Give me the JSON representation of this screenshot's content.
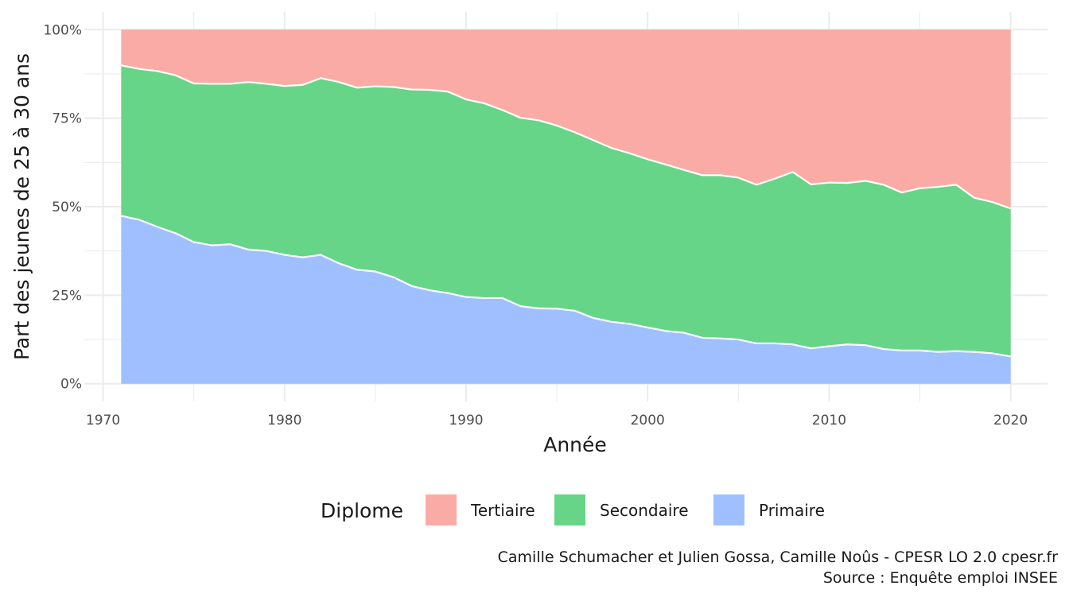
{
  "chart_data": {
    "type": "area",
    "stacked": true,
    "normalized": true,
    "xlabel": "Année",
    "ylabel": "Part des jeunes de 25 à 30 ans",
    "xlim": [
      1968.968,
      2022.032
    ],
    "ylim": [
      0,
      1
    ],
    "x_ticks": [
      1970,
      1980,
      1990,
      2000,
      2010,
      2020
    ],
    "y_ticks": [
      0,
      0.25,
      0.5,
      0.75,
      1
    ],
    "y_tick_labels": [
      "0%",
      "25%",
      "50%",
      "75%",
      "100%"
    ],
    "grid": true,
    "legend": {
      "title": "Diplome",
      "position": "bottom",
      "entries": [
        "Tertiaire",
        "Secondaire",
        "Primaire"
      ]
    },
    "x": [
      1971,
      1972,
      1973,
      1974,
      1975,
      1976,
      1977,
      1978,
      1979,
      1980,
      1981,
      1982,
      1983,
      1984,
      1985,
      1986,
      1987,
      1988,
      1989,
      1990,
      1991,
      1992,
      1993,
      1994,
      1995,
      1996,
      1997,
      1998,
      1999,
      2000,
      2001,
      2002,
      2003,
      2004,
      2005,
      2006,
      2007,
      2008,
      2009,
      2010,
      2011,
      2012,
      2013,
      2014,
      2015,
      2016,
      2017,
      2018,
      2019,
      2020
    ],
    "series": [
      {
        "name": "Primaire",
        "color": "#A0BFFE",
        "values": [
          0.474,
          0.463,
          0.443,
          0.425,
          0.4,
          0.391,
          0.394,
          0.379,
          0.375,
          0.364,
          0.357,
          0.364,
          0.34,
          0.322,
          0.317,
          0.301,
          0.276,
          0.264,
          0.256,
          0.245,
          0.242,
          0.242,
          0.219,
          0.213,
          0.212,
          0.206,
          0.186,
          0.175,
          0.169,
          0.159,
          0.149,
          0.144,
          0.13,
          0.128,
          0.125,
          0.114,
          0.114,
          0.111,
          0.1,
          0.106,
          0.111,
          0.109,
          0.098,
          0.094,
          0.094,
          0.09,
          0.092,
          0.09,
          0.086,
          0.077
        ]
      },
      {
        "name": "Secondaire",
        "color": "#66D587",
        "values": [
          0.425,
          0.426,
          0.44,
          0.446,
          0.448,
          0.456,
          0.453,
          0.473,
          0.472,
          0.477,
          0.487,
          0.499,
          0.512,
          0.514,
          0.523,
          0.537,
          0.555,
          0.566,
          0.569,
          0.558,
          0.55,
          0.531,
          0.532,
          0.531,
          0.517,
          0.504,
          0.502,
          0.491,
          0.482,
          0.475,
          0.47,
          0.46,
          0.459,
          0.461,
          0.457,
          0.448,
          0.465,
          0.487,
          0.463,
          0.462,
          0.456,
          0.464,
          0.464,
          0.446,
          0.458,
          0.466,
          0.47,
          0.435,
          0.427,
          0.418
        ]
      },
      {
        "name": "Tertiaire",
        "color": "#FAABA6",
        "values": [
          0.101,
          0.111,
          0.117,
          0.129,
          0.152,
          0.153,
          0.153,
          0.148,
          0.153,
          0.159,
          0.156,
          0.137,
          0.148,
          0.164,
          0.16,
          0.162,
          0.169,
          0.17,
          0.175,
          0.197,
          0.208,
          0.227,
          0.249,
          0.256,
          0.271,
          0.29,
          0.312,
          0.334,
          0.349,
          0.366,
          0.381,
          0.396,
          0.411,
          0.411,
          0.418,
          0.438,
          0.421,
          0.402,
          0.437,
          0.432,
          0.433,
          0.427,
          0.438,
          0.46,
          0.448,
          0.444,
          0.438,
          0.475,
          0.487,
          0.505
        ]
      }
    ]
  },
  "caption": {
    "line1": "Camille Schumacher et Julien Gossa, Camille Noûs - CPESR LO 2.0 cpesr.fr",
    "line2": "Source : Enquête emploi INSEE"
  }
}
